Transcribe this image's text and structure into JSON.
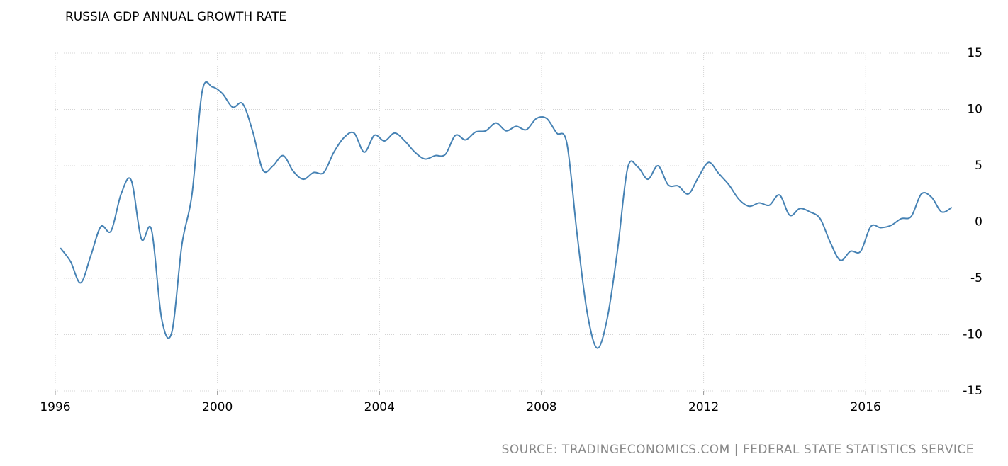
{
  "chart_data": {
    "type": "line",
    "title": "RUSSIA GDP ANNUAL GROWTH RATE",
    "source": "SOURCE: TRADINGECONOMICS.COM | FEDERAL STATE STATISTICS SERVICE",
    "x": [
      1996.125,
      1996.375,
      1996.625,
      1996.875,
      1997.125,
      1997.375,
      1997.625,
      1997.875,
      1998.125,
      1998.375,
      1998.625,
      1998.875,
      1999.125,
      1999.375,
      1999.625,
      1999.875,
      2000.125,
      2000.375,
      2000.625,
      2000.875,
      2001.125,
      2001.375,
      2001.625,
      2001.875,
      2002.125,
      2002.375,
      2002.625,
      2002.875,
      2003.125,
      2003.375,
      2003.625,
      2003.875,
      2004.125,
      2004.375,
      2004.625,
      2004.875,
      2005.125,
      2005.375,
      2005.625,
      2005.875,
      2006.125,
      2006.375,
      2006.625,
      2006.875,
      2007.125,
      2007.375,
      2007.625,
      2007.875,
      2008.125,
      2008.375,
      2008.625,
      2008.875,
      2009.125,
      2009.375,
      2009.625,
      2009.875,
      2010.125,
      2010.375,
      2010.625,
      2010.875,
      2011.125,
      2011.375,
      2011.625,
      2011.875,
      2012.125,
      2012.375,
      2012.625,
      2012.875,
      2013.125,
      2013.375,
      2013.625,
      2013.875,
      2014.125,
      2014.375,
      2014.625,
      2014.875,
      2015.125,
      2015.375,
      2015.625,
      2015.875,
      2016.125,
      2016.375,
      2016.625,
      2016.875,
      2017.125,
      2017.375,
      2017.625,
      2017.875,
      2018.125
    ],
    "series": [
      {
        "name": "GDP Annual Growth Rate",
        "color": "#4682b4",
        "values": [
          -2.3,
          -3.5,
          -5.4,
          -3.0,
          -0.4,
          -0.8,
          2.5,
          3.7,
          -1.5,
          -0.7,
          -8.6,
          -9.8,
          -2.0,
          2.5,
          11.6,
          12.0,
          11.4,
          10.2,
          10.5,
          8.0,
          4.6,
          5.0,
          5.9,
          4.5,
          3.8,
          4.4,
          4.4,
          6.2,
          7.5,
          7.9,
          6.2,
          7.7,
          7.2,
          7.9,
          7.2,
          6.2,
          5.6,
          5.9,
          6.0,
          7.7,
          7.3,
          8.0,
          8.1,
          8.8,
          8.1,
          8.5,
          8.2,
          9.2,
          9.2,
          7.9,
          7.0,
          -1.0,
          -8.0,
          -11.2,
          -8.5,
          -2.5,
          4.8,
          4.9,
          3.8,
          5.0,
          3.3,
          3.2,
          2.5,
          4.0,
          5.3,
          4.3,
          3.3,
          2.0,
          1.4,
          1.7,
          1.5,
          2.4,
          0.6,
          1.2,
          0.9,
          0.3,
          -1.8,
          -3.4,
          -2.6,
          -2.6,
          -0.4,
          -0.5,
          -0.3,
          0.3,
          0.5,
          2.5,
          2.2,
          0.9,
          1.3
        ]
      }
    ],
    "xlim": [
      1996,
      2018.2
    ],
    "xticks": [
      1996,
      2000,
      2004,
      2008,
      2012,
      2016
    ],
    "ylim": [
      -15,
      15
    ],
    "yticks": [
      -15,
      -10,
      -5,
      0,
      5,
      10,
      15
    ],
    "grid": true
  }
}
